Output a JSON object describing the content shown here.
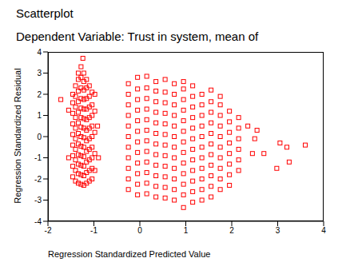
{
  "chart_data": {
    "type": "scatter",
    "title": "Scatterplot",
    "subtitle": "Dependent Variable: Trust in system, mean of",
    "x_label": "Regression Standardized Predicted Value",
    "y_label": "Regression Standardized Residual",
    "xlim": [
      -2,
      4
    ],
    "xticks": [
      -2,
      -1,
      0,
      1,
      2,
      3,
      4
    ],
    "ylim": [
      -4,
      4
    ],
    "yticks": [
      -4,
      -3,
      -2,
      -1,
      0,
      1,
      2,
      3,
      4
    ],
    "grid": false,
    "color": "#ff0000",
    "marker": "square",
    "x": [
      -1.46,
      -1.46,
      -1.46,
      -1.46,
      -1.46,
      -1.46,
      -1.46,
      -1.46,
      -1.46,
      -1.4,
      -1.4,
      -1.4,
      -1.4,
      -1.4,
      -1.4,
      -1.4,
      -1.4,
      -1.4,
      -1.4,
      -1.34,
      -1.34,
      -1.34,
      -1.34,
      -1.34,
      -1.34,
      -1.34,
      -1.34,
      -1.34,
      -1.34,
      -1.34,
      -1.34,
      -1.28,
      -1.28,
      -1.28,
      -1.28,
      -1.28,
      -1.28,
      -1.28,
      -1.28,
      -1.28,
      -1.28,
      -1.28,
      -1.28,
      -1.28,
      -1.22,
      -1.22,
      -1.22,
      -1.22,
      -1.22,
      -1.22,
      -1.22,
      -1.22,
      -1.22,
      -1.22,
      -1.22,
      -1.22,
      -1.22,
      -1.16,
      -1.16,
      -1.16,
      -1.16,
      -1.16,
      -1.16,
      -1.16,
      -1.16,
      -1.16,
      -1.16,
      -1.16,
      -1.1,
      -1.1,
      -1.1,
      -1.1,
      -1.1,
      -1.1,
      -1.1,
      -1.1,
      -1.1,
      -1.1,
      -1.04,
      -1.04,
      -1.04,
      -1.04,
      -1.04,
      -1.04,
      -1.04,
      -1.04,
      -1.04,
      -0.98,
      -0.98,
      -0.98,
      -0.98,
      -0.98,
      -1.24,
      -1.72,
      -1.55,
      -1.55,
      -0.92,
      -0.9,
      -0.25,
      -0.25,
      -0.25,
      -0.25,
      -0.25,
      -0.25,
      -0.25,
      -0.25,
      -0.25,
      -0.25,
      -0.25,
      -0.05,
      -0.05,
      -0.05,
      -0.05,
      -0.05,
      -0.05,
      -0.05,
      -0.05,
      -0.05,
      -0.05,
      -0.05,
      -0.05,
      0.15,
      0.15,
      0.15,
      0.15,
      0.15,
      0.15,
      0.15,
      0.15,
      0.15,
      0.15,
      0.15,
      0.15,
      0.35,
      0.35,
      0.35,
      0.35,
      0.35,
      0.35,
      0.35,
      0.35,
      0.35,
      0.35,
      0.35,
      0.35,
      0.55,
      0.55,
      0.55,
      0.55,
      0.55,
      0.55,
      0.55,
      0.55,
      0.55,
      0.55,
      0.55,
      0.55,
      0.75,
      0.75,
      0.75,
      0.75,
      0.75,
      0.75,
      0.75,
      0.75,
      0.75,
      0.75,
      0.75,
      0.75,
      0.95,
      0.95,
      0.95,
      0.95,
      0.95,
      0.95,
      0.95,
      0.95,
      0.95,
      0.95,
      0.95,
      0.95,
      0.95,
      1.15,
      1.15,
      1.15,
      1.15,
      1.15,
      1.15,
      1.15,
      1.15,
      1.15,
      1.15,
      1.15,
      1.15,
      1.35,
      1.35,
      1.35,
      1.35,
      1.35,
      1.35,
      1.35,
      1.35,
      1.35,
      1.35,
      1.35,
      1.55,
      1.55,
      1.55,
      1.55,
      1.55,
      1.55,
      1.55,
      1.55,
      1.55,
      1.55,
      1.55,
      1.75,
      1.75,
      1.75,
      1.75,
      1.75,
      1.75,
      1.75,
      1.75,
      1.75,
      1.75,
      1.95,
      1.95,
      1.95,
      1.95,
      1.95,
      1.95,
      1.95,
      1.95,
      2.15,
      2.15,
      2.15,
      2.15,
      2.15,
      2.15,
      2.35,
      2.45,
      2.5,
      2.7,
      2.98,
      3.05,
      3.2,
      3.25,
      3.6,
      2.55
    ],
    "values": [
      -1.9,
      -1.4,
      -0.9,
      -0.4,
      0.1,
      0.6,
      1.1,
      1.6,
      2.0,
      -2.1,
      -1.6,
      -1.1,
      -0.6,
      -0.1,
      0.4,
      0.9,
      1.4,
      1.9,
      2.4,
      -2.2,
      -1.75,
      -1.3,
      -0.85,
      -0.35,
      0.15,
      0.65,
      1.15,
      1.65,
      2.15,
      2.7,
      3.0,
      -2.25,
      -1.8,
      -1.35,
      -0.9,
      -0.45,
      0,
      0.45,
      0.9,
      1.35,
      1.8,
      2.3,
      2.8,
      3.3,
      -2.3,
      -1.85,
      -1.4,
      -0.95,
      -0.5,
      -0.05,
      0.4,
      0.85,
      1.3,
      1.75,
      2.2,
      2.6,
      3.0,
      -2.2,
      -1.7,
      -1.2,
      -0.7,
      -0.2,
      0.3,
      0.8,
      1.3,
      1.8,
      2.3,
      2.7,
      -2.1,
      -1.6,
      -1.1,
      -0.6,
      -0.1,
      0.4,
      0.9,
      1.4,
      1.9,
      2.4,
      -2.0,
      -1.5,
      -1.0,
      -0.5,
      0,
      0.5,
      1.0,
      1.5,
      2.1,
      -1.6,
      -0.8,
      0.2,
      1.2,
      2.0,
      3.7,
      1.75,
      1.25,
      -1.0,
      0.5,
      -1.0,
      -2.5,
      -2.0,
      -1.5,
      -1.0,
      -0.5,
      0,
      0.5,
      1.0,
      1.5,
      2.0,
      2.5,
      -2.75,
      -2.25,
      -1.75,
      -1.25,
      -0.75,
      -0.25,
      0.25,
      0.75,
      1.25,
      1.75,
      2.25,
      2.8,
      -2.7,
      -2.2,
      -1.7,
      -1.2,
      -0.7,
      -0.2,
      0.3,
      0.8,
      1.3,
      1.8,
      2.3,
      2.85,
      -2.85,
      -2.35,
      -1.85,
      -1.35,
      -0.85,
      -0.35,
      0.15,
      0.65,
      1.15,
      1.65,
      2.15,
      2.6,
      -2.9,
      -2.4,
      -1.9,
      -1.4,
      -0.9,
      -0.4,
      0.1,
      0.6,
      1.1,
      1.6,
      2.1,
      2.7,
      -3.0,
      -2.5,
      -2.0,
      -1.5,
      -1.0,
      -0.5,
      0,
      0.5,
      1.0,
      1.5,
      2.0,
      2.5,
      -3.35,
      -2.75,
      -2.25,
      -1.75,
      -1.25,
      -0.75,
      -0.25,
      0.25,
      0.75,
      1.25,
      1.75,
      2.25,
      2.6,
      -3.1,
      -2.6,
      -2.1,
      -1.6,
      -1.1,
      -0.6,
      -0.1,
      0.4,
      0.9,
      1.4,
      1.9,
      2.4,
      -3.0,
      -2.5,
      -2.0,
      -1.5,
      -1.0,
      -0.5,
      0,
      0.5,
      1.0,
      1.5,
      2.0,
      -2.85,
      -2.35,
      -1.85,
      -1.35,
      -0.85,
      -0.35,
      0.15,
      0.65,
      1.15,
      1.65,
      2.2,
      -2.5,
      -2.0,
      -1.5,
      -1.0,
      -0.5,
      0,
      0.5,
      1.0,
      1.5,
      1.9,
      -2.3,
      -1.8,
      -1.3,
      -0.8,
      -0.3,
      0.2,
      0.7,
      1.2,
      -1.6,
      -1.1,
      -0.6,
      -0.1,
      0.4,
      0.9,
      0.5,
      -0.8,
      -0.1,
      -0.8,
      -1.5,
      -0.3,
      -0.5,
      -1.2,
      -0.4,
      0.3
    ]
  }
}
